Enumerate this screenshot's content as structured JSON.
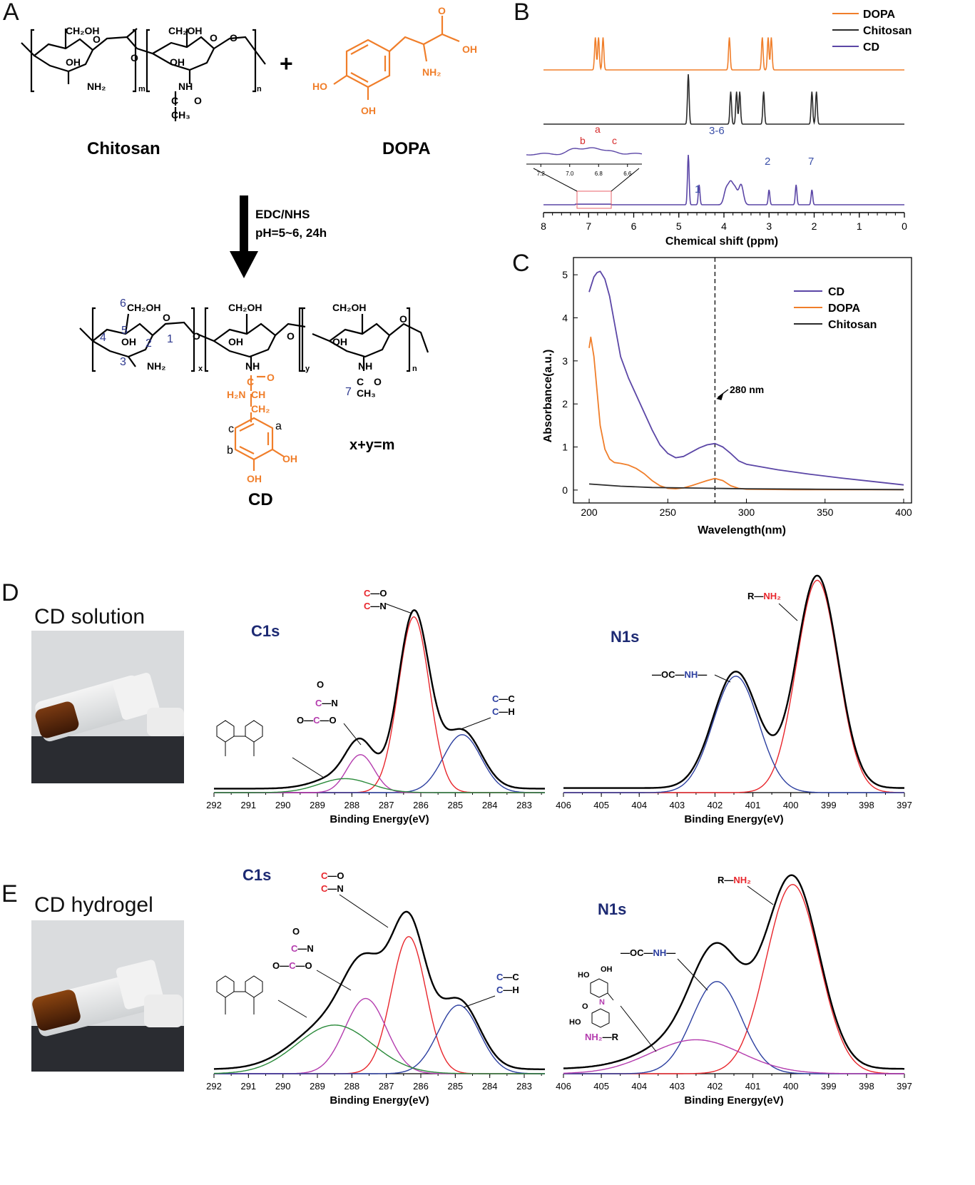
{
  "panels": {
    "A": "A",
    "B": "B",
    "C": "C",
    "D": "D",
    "E": "E"
  },
  "panelA": {
    "reactant1": "Chitosan",
    "reactant2": "DOPA",
    "plus": "+",
    "conditions": [
      "EDC/NHS",
      "pH=5~6, 24h"
    ],
    "product": "CD",
    "relation": "x+y=m",
    "atoms": {
      "ch2oh": "CH₂OH",
      "oh": "OH",
      "nh2": "NH₂",
      "nh": "NH",
      "ho": "HO",
      "ch3": "CH₃",
      "ch2": "CH₂",
      "ch": "CH",
      "c": "C",
      "o": "O",
      "h2n": "H₂N"
    },
    "subs": {
      "m": "m",
      "n": "n",
      "x": "x",
      "y": "y"
    },
    "positions": [
      "1",
      "2",
      "3",
      "4",
      "5",
      "6",
      "7"
    ],
    "ring_labels": [
      "a",
      "b",
      "c"
    ]
  },
  "colors": {
    "dopa": "#f07e2a",
    "chitosan": "#2b2b2b",
    "cd": "#5b46a6",
    "c1s_red": "#e8262c",
    "c1s_blue": "#2c3fa0",
    "c1s_magenta": "#b43cae",
    "c1s_green": "#2a8a3a",
    "label_blue": "#2f3a8f",
    "dark_text": "#1d2a73"
  },
  "chart_data": [
    {
      "id": "B",
      "type": "line",
      "xlabel": "Chemical shift (ppm)",
      "xlim": [
        8,
        0
      ],
      "xticks": [
        8,
        7,
        6,
        5,
        4,
        3,
        2,
        1,
        0
      ],
      "series": [
        {
          "name": "DOPA",
          "color": "#f07e2a",
          "peaks_ppm": [
            6.85,
            6.78,
            6.68,
            3.88,
            3.15,
            3.02,
            2.95
          ]
        },
        {
          "name": "Chitosan",
          "color": "#2b2b2b",
          "peaks_ppm": [
            4.79,
            3.85,
            3.72,
            3.65,
            3.12,
            2.05,
            1.95
          ]
        },
        {
          "name": "CD",
          "color": "#5b46a6",
          "peaks_ppm": [
            4.79,
            4.55,
            3.95,
            3.85,
            3.75,
            3.62,
            3.0,
            2.4,
            2.05
          ]
        }
      ],
      "peak_labels": [
        "1",
        "3-6",
        "2",
        "7"
      ],
      "inset": {
        "xticks": [
          "7.2",
          "7.0",
          "6.8",
          "6.6"
        ],
        "labels": [
          "b",
          "a",
          "c"
        ]
      }
    },
    {
      "id": "C",
      "type": "line",
      "xlabel": "Wavelength(nm)",
      "ylabel": "Absorbance(a.u.)",
      "xlim": [
        190,
        405
      ],
      "ylim": [
        -0.3,
        5.4
      ],
      "xticks": [
        200,
        250,
        300,
        350,
        400
      ],
      "yticks": [
        0,
        1,
        2,
        3,
        4,
        5
      ],
      "annotation": "280 nm",
      "vline_x": 280,
      "series": [
        {
          "name": "CD",
          "color": "#5b46a6",
          "x": [
            200,
            203,
            205,
            207,
            210,
            213,
            216,
            220,
            225,
            230,
            235,
            240,
            245,
            250,
            255,
            260,
            265,
            270,
            275,
            280,
            285,
            290,
            295,
            300,
            320,
            340,
            360,
            380,
            400
          ],
          "y": [
            4.6,
            4.95,
            5.05,
            5.08,
            4.9,
            4.5,
            3.9,
            3.1,
            2.6,
            2.2,
            1.8,
            1.4,
            1.05,
            0.85,
            0.75,
            0.78,
            0.88,
            0.98,
            1.05,
            1.08,
            1.0,
            0.85,
            0.68,
            0.6,
            0.47,
            0.37,
            0.28,
            0.2,
            0.12
          ]
        },
        {
          "name": "DOPA",
          "color": "#f07e2a",
          "x": [
            200,
            201,
            203,
            205,
            207,
            210,
            213,
            216,
            220,
            225,
            230,
            235,
            240,
            245,
            250,
            255,
            260,
            265,
            270,
            275,
            280,
            285,
            290,
            295,
            300,
            330,
            360,
            400
          ],
          "y": [
            3.3,
            3.55,
            3.1,
            2.3,
            1.5,
            0.95,
            0.72,
            0.64,
            0.62,
            0.58,
            0.5,
            0.38,
            0.22,
            0.1,
            0.04,
            0.03,
            0.05,
            0.1,
            0.16,
            0.22,
            0.27,
            0.22,
            0.1,
            0.04,
            0.02,
            0.01,
            0.01,
            0.01
          ]
        },
        {
          "name": "Chitosan",
          "color": "#2b2b2b",
          "x": [
            200,
            220,
            240,
            260,
            280,
            300,
            340,
            400
          ],
          "y": [
            0.14,
            0.09,
            0.06,
            0.05,
            0.04,
            0.03,
            0.02,
            0.01
          ]
        }
      ]
    },
    {
      "id": "D-C1s",
      "type": "area",
      "title": "C1s",
      "xlabel": "Binding Energy(eV)",
      "xlim": [
        292,
        282.4
      ],
      "xticks": [
        292,
        291,
        290,
        289,
        288,
        287,
        286,
        285,
        284,
        283
      ],
      "components": [
        {
          "center": 286.2,
          "height": 0.88,
          "sigma": 0.45,
          "color": "#e8262c"
        },
        {
          "center": 284.8,
          "height": 0.29,
          "sigma": 0.55,
          "color": "#2c3fa0"
        },
        {
          "center": 287.75,
          "height": 0.19,
          "sigma": 0.4,
          "color": "#b43cae"
        },
        {
          "center": 288.2,
          "height": 0.07,
          "sigma": 0.75,
          "color": "#2a8a3a"
        }
      ],
      "labels": {
        "c_o": [
          "C",
          "—O"
        ],
        "c_n": [
          "C",
          "—N"
        ],
        "cc": [
          "C",
          "—C"
        ],
        "ch": [
          "C",
          "—H"
        ],
        "amide_top": "O",
        "amide_mid": [
          "C",
          "—N"
        ],
        "amide_bot": [
          "O—",
          "C",
          "—O"
        ]
      }
    },
    {
      "id": "D-N1s",
      "type": "area",
      "title": "N1s",
      "xlabel": "Binding Energy(eV)",
      "xlim": [
        406,
        397
      ],
      "xticks": [
        406,
        405,
        404,
        403,
        402,
        401,
        400,
        399,
        398,
        397
      ],
      "components": [
        {
          "center": 399.3,
          "height": 0.93,
          "sigma": 0.55,
          "color": "#e8262c"
        },
        {
          "center": 401.45,
          "height": 0.51,
          "sigma": 0.6,
          "color": "#2c3fa0"
        }
      ],
      "labels": {
        "amine": [
          "R—",
          "NH₂"
        ],
        "amide": [
          "—OC—",
          "NH",
          "—"
        ]
      }
    },
    {
      "id": "E-C1s",
      "type": "area",
      "title": "C1s",
      "xlabel": "Binding Energy(eV)",
      "xlim": [
        292,
        282.4
      ],
      "xticks": [
        292,
        291,
        290,
        289,
        288,
        287,
        286,
        285,
        284,
        283
      ],
      "components": [
        {
          "center": 286.35,
          "height": 0.62,
          "sigma": 0.5,
          "color": "#e8262c"
        },
        {
          "center": 287.6,
          "height": 0.34,
          "sigma": 0.6,
          "color": "#b43cae"
        },
        {
          "center": 284.9,
          "height": 0.31,
          "sigma": 0.6,
          "color": "#2c3fa0"
        },
        {
          "center": 288.5,
          "height": 0.22,
          "sigma": 1.1,
          "color": "#2a8a3a"
        }
      ]
    },
    {
      "id": "E-N1s",
      "type": "area",
      "title": "N1s",
      "xlabel": "Binding Energy(eV)",
      "xlim": [
        406,
        397
      ],
      "xticks": [
        406,
        405,
        404,
        403,
        402,
        401,
        400,
        399,
        398,
        397
      ],
      "components": [
        {
          "center": 399.95,
          "height": 0.78,
          "sigma": 0.7,
          "color": "#e8262c"
        },
        {
          "center": 401.95,
          "height": 0.38,
          "sigma": 0.65,
          "color": "#2c3fa0"
        },
        {
          "center": 402.5,
          "height": 0.14,
          "sigma": 1.2,
          "color": "#b43cae"
        }
      ],
      "labels": {
        "amine": [
          "R—",
          "NH₂"
        ],
        "amide": [
          "—OC—",
          "NH",
          "—"
        ],
        "ho": "HO",
        "oh": "OH",
        "o": "O",
        "n": "N",
        "nh2r": [
          "NH₂",
          "—R"
        ]
      }
    }
  ],
  "photoD": {
    "caption": "CD solution"
  },
  "photoE": {
    "caption": "CD hydrogel"
  }
}
